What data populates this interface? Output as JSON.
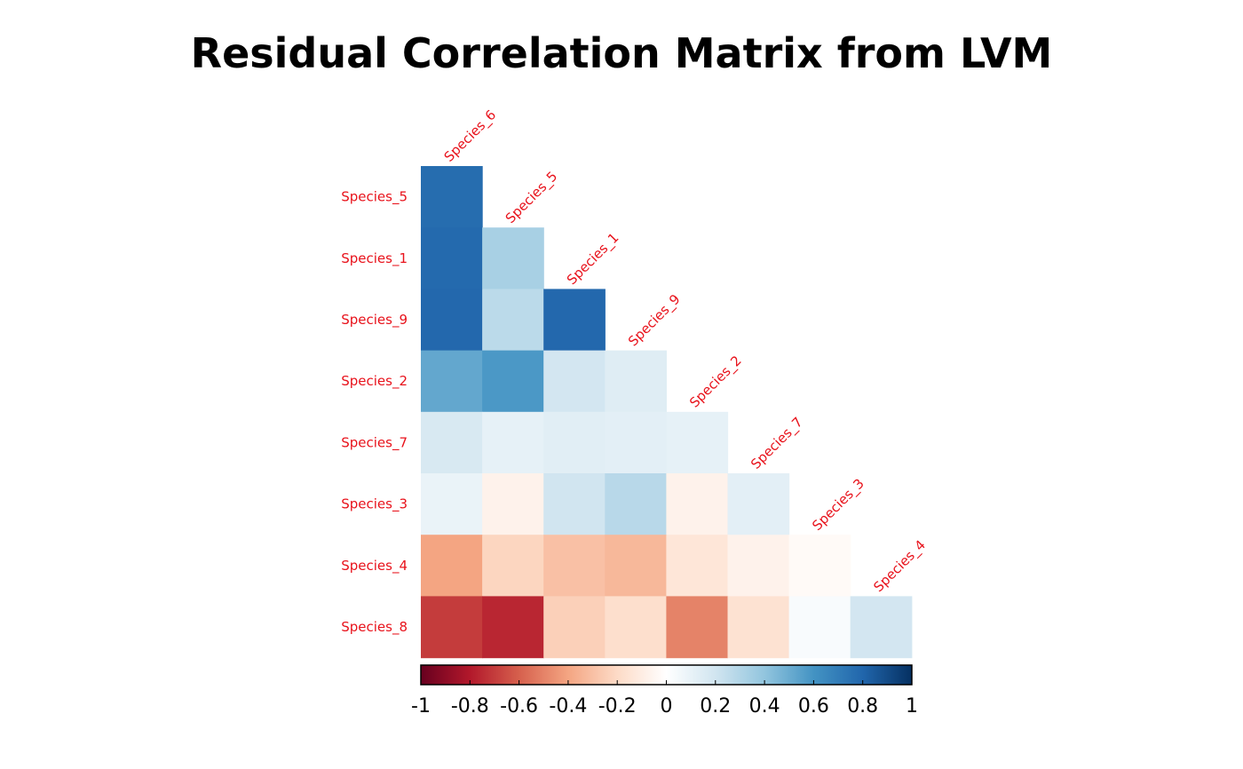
{
  "chart_data": {
    "type": "heatmap",
    "title": "Residual Correlation Matrix from LVM",
    "row_labels": [
      "Species_5",
      "Species_1",
      "Species_9",
      "Species_2",
      "Species_7",
      "Species_3",
      "Species_4",
      "Species_8"
    ],
    "col_labels": [
      "Species_6",
      "Species_5",
      "Species_1",
      "Species_9",
      "Species_2",
      "Species_7",
      "Species_3",
      "Species_4"
    ],
    "values": [
      [
        0.77
      ],
      [
        0.78,
        0.33
      ],
      [
        0.79,
        0.27,
        0.79
      ],
      [
        0.52,
        0.58,
        0.19,
        0.14
      ],
      [
        0.17,
        0.11,
        0.13,
        0.12,
        0.11
      ],
      [
        0.09,
        -0.07,
        0.2,
        0.28,
        -0.07,
        0.12
      ],
      [
        -0.4,
        -0.22,
        -0.3,
        -0.33,
        -0.14,
        -0.07,
        -0.03
      ],
      [
        -0.7,
        -0.76,
        -0.24,
        -0.18,
        -0.5,
        -0.16,
        0.03,
        0.19
      ]
    ],
    "colorbar": {
      "ticks": [
        "-1",
        "-0.8",
        "-0.6",
        "-0.4",
        "-0.2",
        "0",
        "0.2",
        "0.4",
        "0.6",
        "0.8",
        "1"
      ],
      "range": [
        -1,
        1
      ],
      "colors": [
        "#67001f",
        "#b2182b",
        "#d6604d",
        "#f4a582",
        "#fddbc7",
        "#ffffff",
        "#d1e5f0",
        "#92c5de",
        "#4393c3",
        "#2166ac",
        "#053061"
      ]
    },
    "label_color": "#e8121b"
  }
}
